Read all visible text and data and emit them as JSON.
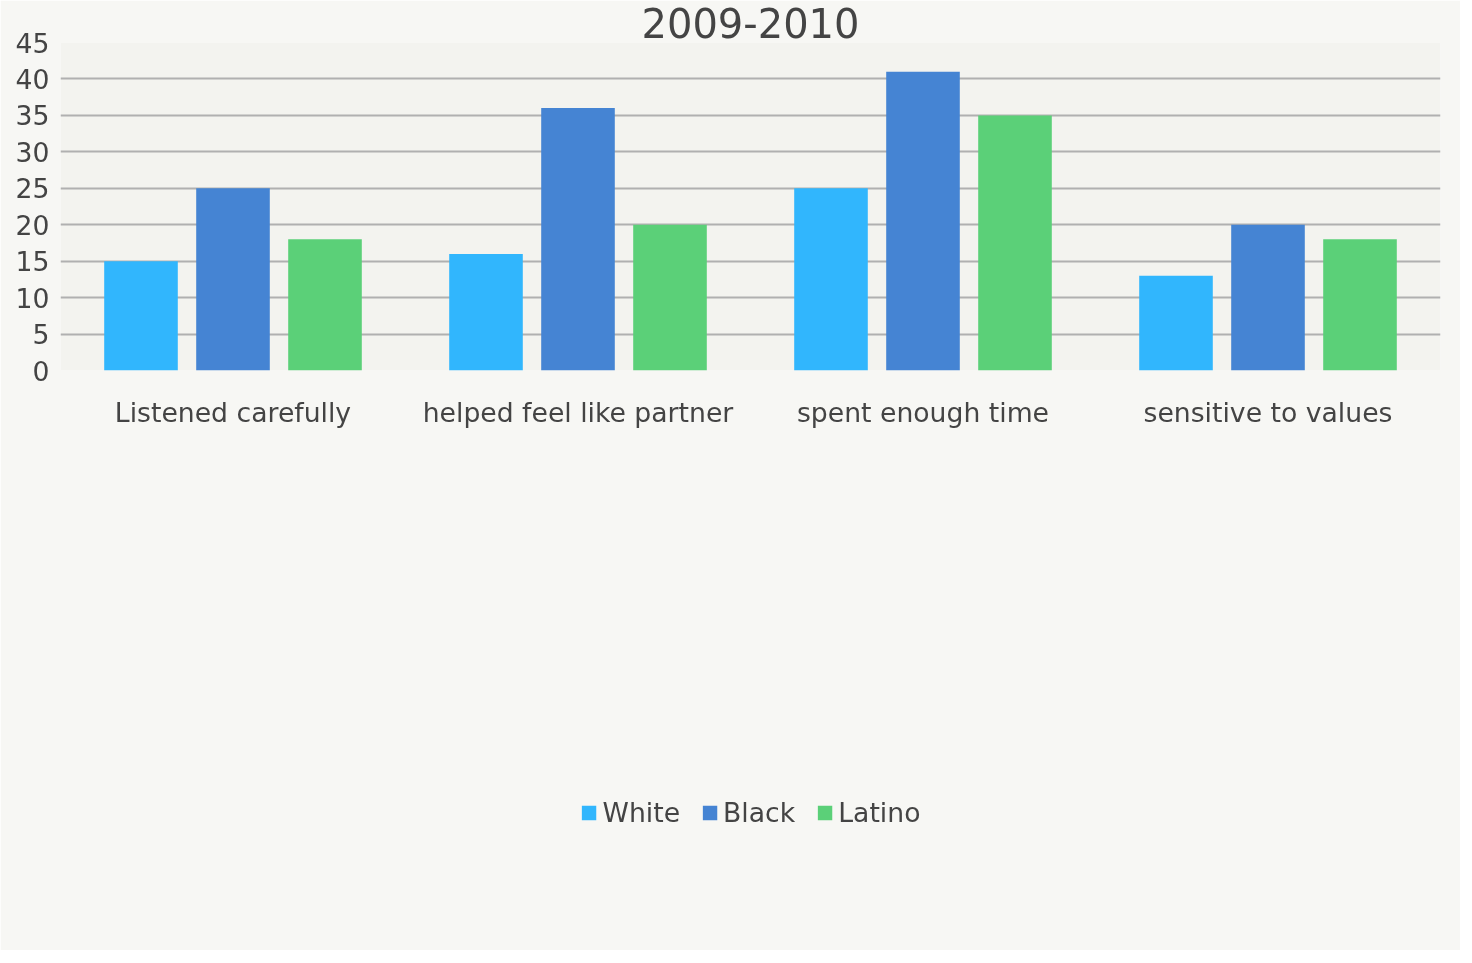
{
  "chart_data": {
    "type": "bar",
    "title": "2009-2010",
    "categories": [
      "Listened carefully",
      "helped feel like partner",
      "spent enough time",
      "sensitive to values"
    ],
    "series": [
      {
        "name": "White",
        "color": "#31b6fd",
        "values": [
          15,
          16,
          25,
          13
        ]
      },
      {
        "name": "Black",
        "color": "#4584d3",
        "values": [
          25,
          36,
          41,
          20
        ]
      },
      {
        "name": "Latino",
        "color": "#5bd078",
        "values": [
          18,
          20,
          35,
          18
        ]
      }
    ],
    "ylim": [
      0,
      45
    ],
    "yticks": [
      0,
      5,
      10,
      15,
      20,
      25,
      30,
      35,
      40,
      45
    ],
    "grid": "y",
    "legend": "bottom"
  }
}
